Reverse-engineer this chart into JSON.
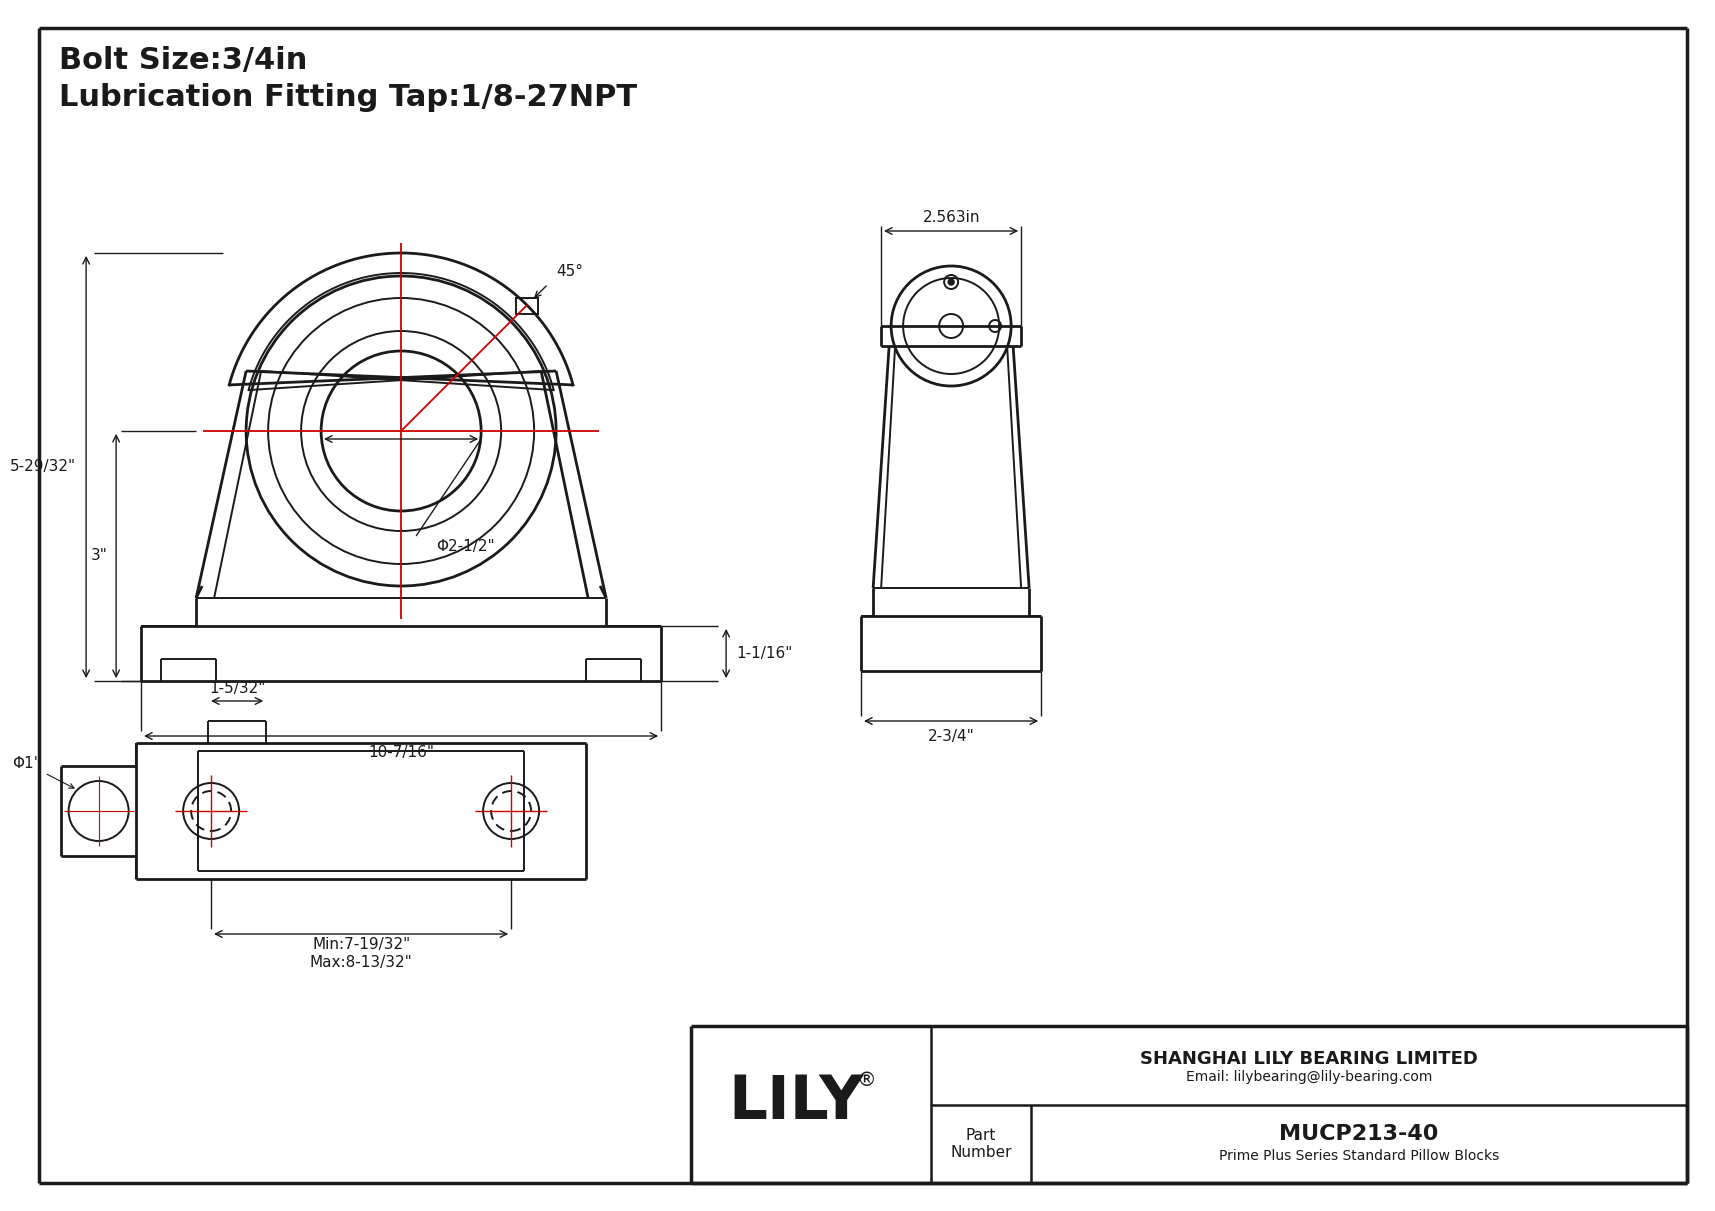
{
  "bg_color": "#ffffff",
  "lc": "#1a1a1a",
  "rc": "#cc0000",
  "title1": "Bolt Size:3/4in",
  "title2": "Lubrication Fitting Tap:1/8-27NPT",
  "dim_45": "45°",
  "dim_bore": "Φ2-1/2\"",
  "dim_width_front": "10-7/16\"",
  "dim_h_full": "5-29/32\"",
  "dim_h_base": "3\"",
  "dim_side_h": "1-1/16\"",
  "dim_side_w": "2-3/4\"",
  "dim_top_w": "2.563in",
  "dim_bolt": "Φ1\"",
  "dim_slot": "1-5/32\"",
  "dim_min": "Min:7-19/32\"",
  "dim_max": "Max:8-13/32\"",
  "company": "SHANGHAI LILY BEARING LIMITED",
  "email": "Email: lilybearing@lily-bearing.com",
  "brand": "LILY",
  "tm": "®",
  "part_label": "Part\nNumber",
  "part_num": "MUCP213-40",
  "part_desc": "Prime Plus Series Standard Pillow Blocks"
}
